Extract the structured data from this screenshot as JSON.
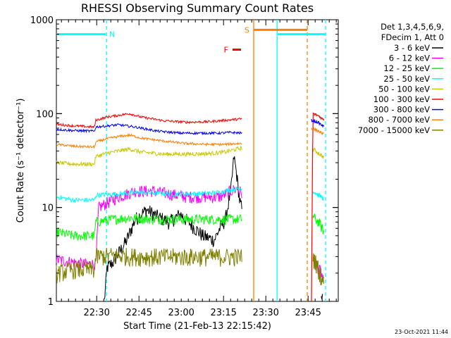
{
  "chart_data": {
    "type": "line",
    "title": "RHESSI Observing Summary Count Rates",
    "xlabel": "Start Time (21-Feb-13 22:15:42)",
    "ylabel": "Count Rate (s⁻¹ detector⁻¹)",
    "y_scale": "log",
    "ylim": [
      1,
      1000
    ],
    "xlim_minutes": [
      0,
      100
    ],
    "x_tick_labels": [
      "22:30",
      "22:45",
      "23:00",
      "23:15",
      "23:30",
      "23:45"
    ],
    "x_tick_minutes": [
      14.3,
      29.3,
      44.3,
      59.3,
      74.3,
      89.3
    ],
    "y_tick_labels": [
      "1",
      "10",
      "100",
      "1000"
    ],
    "y_tick_values": [
      1,
      10,
      100,
      1000
    ],
    "legend_header": [
      "Det 1,3,4,5,6,9,",
      "FDecim 1, Att 0"
    ],
    "legend_placement": "right",
    "footer_date": "23-Oct-2021 11:44",
    "flags": [
      {
        "label": "N",
        "color": "#00ffff"
      },
      {
        "label": "F",
        "color": "#ff0000"
      },
      {
        "label": "S",
        "color": "#ff8000"
      }
    ],
    "flag_bars": {
      "N": [
        [
          0,
          17.5
        ],
        [
          78.5,
          95.5
        ]
      ],
      "F": [
        [
          62.5,
          65.5
        ]
      ],
      "S": [
        [
          70,
          89
        ]
      ]
    },
    "flag_bar_levels": {
      "N": 700,
      "F": 480,
      "S": 780
    },
    "marker_lines": [
      {
        "x": 17.8,
        "color": "#00ffff",
        "style": "dash"
      },
      {
        "x": 70,
        "color": "#ff8000",
        "style": "solid"
      },
      {
        "x": 78.3,
        "color": "#00ffff",
        "style": "solid"
      },
      {
        "x": 89,
        "color": "#ff8000",
        "style": "dash"
      },
      {
        "x": 95.5,
        "color": "#00ffff",
        "style": "dash"
      }
    ],
    "series": [
      {
        "name": "3 - 6 keV",
        "color": "#000000",
        "points": [
          [
            17,
            1
          ],
          [
            18,
            2.3
          ],
          [
            20,
            2.6
          ],
          [
            25,
            4.5
          ],
          [
            28,
            7.5
          ],
          [
            32,
            9.5
          ],
          [
            36,
            8
          ],
          [
            40,
            7
          ],
          [
            44,
            8.5
          ],
          [
            48,
            6.5
          ],
          [
            52,
            5
          ],
          [
            56,
            4.5
          ],
          [
            58,
            6
          ],
          [
            60,
            7.5
          ],
          [
            62,
            16
          ],
          [
            63,
            35
          ],
          [
            64,
            22
          ],
          [
            65,
            12
          ],
          [
            66,
            9
          ]
        ],
        "points_b": [
          [
            94,
            1
          ],
          [
            94.5,
            1.5
          ]
        ]
      },
      {
        "name": "6 - 12 keV",
        "color": "#ff00ff",
        "points": [
          [
            0,
            2.8
          ],
          [
            10,
            2.5
          ],
          [
            14,
            2.5
          ],
          [
            15,
            10
          ],
          [
            22,
            13
          ],
          [
            28,
            15
          ],
          [
            34,
            15
          ],
          [
            40,
            14
          ],
          [
            46,
            13
          ],
          [
            52,
            13
          ],
          [
            58,
            13
          ],
          [
            62,
            15
          ],
          [
            64,
            16
          ],
          [
            66,
            14
          ]
        ],
        "points_b": [
          [
            92,
            2.5
          ],
          [
            94,
            2
          ],
          [
            95,
            1.5
          ]
        ]
      },
      {
        "name": "12 - 25 keV",
        "color": "#00ff00",
        "points": [
          [
            0,
            5.5
          ],
          [
            6,
            5
          ],
          [
            13.5,
            5
          ],
          [
            14,
            7
          ],
          [
            20,
            7.5
          ],
          [
            26,
            7.8
          ],
          [
            34,
            7.5
          ],
          [
            44,
            7.5
          ],
          [
            54,
            7.5
          ],
          [
            60,
            7.5
          ],
          [
            66,
            7.5
          ]
        ],
        "points_b": [
          [
            91,
            8
          ],
          [
            93,
            7
          ],
          [
            95,
            5.5
          ]
        ]
      },
      {
        "name": "25 - 50 keV",
        "color": "#00ffff",
        "points": [
          [
            0,
            13
          ],
          [
            6,
            12
          ],
          [
            13.5,
            12
          ],
          [
            14,
            13.5
          ],
          [
            22,
            14
          ],
          [
            30,
            14.5
          ],
          [
            40,
            14
          ],
          [
            50,
            14
          ],
          [
            58,
            14.5
          ],
          [
            62,
            15.5
          ],
          [
            66,
            16
          ]
        ],
        "points_b": [
          [
            91,
            15
          ],
          [
            93,
            13.5
          ],
          [
            95,
            12.5
          ]
        ]
      },
      {
        "name": "50 - 100 keV",
        "color": "#c8c800",
        "points": [
          [
            0,
            30
          ],
          [
            6,
            29
          ],
          [
            13.5,
            29
          ],
          [
            14,
            35
          ],
          [
            18,
            38
          ],
          [
            22,
            40
          ],
          [
            26,
            42
          ],
          [
            30,
            39
          ],
          [
            38,
            37
          ],
          [
            46,
            37
          ],
          [
            54,
            37.5
          ],
          [
            60,
            39
          ],
          [
            64,
            42
          ],
          [
            66,
            43
          ]
        ],
        "points_b": [
          [
            91,
            42
          ],
          [
            93,
            38
          ],
          [
            95,
            34
          ]
        ]
      },
      {
        "name": "100 - 300 keV",
        "color": "#ff0000",
        "points": [
          [
            0,
            77
          ],
          [
            6,
            74
          ],
          [
            13.5,
            72
          ],
          [
            14,
            85
          ],
          [
            18,
            92
          ],
          [
            22,
            96
          ],
          [
            26,
            100
          ],
          [
            30,
            92
          ],
          [
            38,
            84
          ],
          [
            46,
            81
          ],
          [
            54,
            82
          ],
          [
            60,
            85
          ],
          [
            64,
            87
          ],
          [
            66,
            88
          ]
        ],
        "points_b": [
          [
            90.5,
            1
          ],
          [
            91,
            100
          ],
          [
            93,
            95
          ],
          [
            95,
            85
          ]
        ]
      },
      {
        "name": "300 - 800 keV",
        "color": "#0000ff",
        "points": [
          [
            0,
            68
          ],
          [
            6,
            66
          ],
          [
            13.5,
            65
          ],
          [
            14,
            72
          ],
          [
            18,
            74
          ],
          [
            22,
            76
          ],
          [
            28,
            72
          ],
          [
            36,
            65
          ],
          [
            44,
            62
          ],
          [
            52,
            62
          ],
          [
            58,
            62
          ],
          [
            62,
            63
          ],
          [
            66,
            62
          ]
        ],
        "points_b": [
          [
            90.5,
            85
          ],
          [
            93,
            80
          ],
          [
            95,
            72
          ]
        ]
      },
      {
        "name": "800 - 7000 keV",
        "color": "#ff8000",
        "points": [
          [
            0,
            47
          ],
          [
            6,
            45
          ],
          [
            13.5,
            44
          ],
          [
            14,
            50
          ],
          [
            18,
            54
          ],
          [
            22,
            57
          ],
          [
            26,
            59
          ],
          [
            30,
            55
          ],
          [
            38,
            51
          ],
          [
            46,
            48
          ],
          [
            54,
            47
          ],
          [
            60,
            47
          ],
          [
            64,
            48
          ],
          [
            66,
            48
          ]
        ],
        "points_b": [
          [
            90.5,
            70
          ],
          [
            93,
            65
          ],
          [
            95,
            60
          ]
        ]
      },
      {
        "name": "7000 - 15000 keV",
        "color": "#808000",
        "points": [
          [
            0,
            2
          ],
          [
            6,
            2.2
          ],
          [
            13.5,
            2.2
          ],
          [
            14,
            3
          ],
          [
            20,
            3.1
          ],
          [
            30,
            3
          ],
          [
            40,
            3
          ],
          [
            50,
            3
          ],
          [
            60,
            3
          ],
          [
            66,
            3
          ]
        ],
        "points_b": [
          [
            91,
            3
          ],
          [
            93,
            2.2
          ],
          [
            95,
            1.5
          ]
        ]
      }
    ]
  }
}
